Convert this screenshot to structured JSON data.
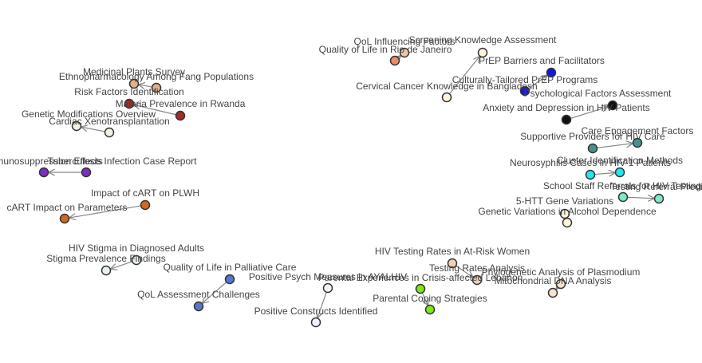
{
  "diagram": {
    "title": "",
    "nodes": [
      {
        "id": "n1",
        "label": "QoL Influencing Factors",
        "color": "#f0c4a2"
      },
      {
        "id": "n2",
        "label": "Quality of Life in Rio de Janeiro",
        "color": "#f08a5d"
      },
      {
        "id": "n3",
        "label": "Screening Knowledge Assessment",
        "color": "#fdf5dc"
      },
      {
        "id": "n4",
        "label": "Cervical Cancer Knowledge in Bangladesh",
        "color": "#fdf5dc"
      },
      {
        "id": "n5",
        "label": "PrEP Barriers and Facilitators",
        "color": "#1515e0"
      },
      {
        "id": "n6",
        "label": "Culturally-Tailored PrEP Programs",
        "color": "#1515e0"
      },
      {
        "id": "n7",
        "label": "Psychological Factors Assessment",
        "color": "#111111"
      },
      {
        "id": "n8",
        "label": "Anxiety and Depression in HIV Patients",
        "color": "#111111"
      },
      {
        "id": "n9",
        "label": "Medicinal Plants Survey",
        "color": "#e0b089"
      },
      {
        "id": "n10",
        "label": "Ethnopharmacology Among Fang Populations",
        "color": "#e0b089"
      },
      {
        "id": "n11",
        "label": "Risk Factors Identification",
        "color": "#a52a2a"
      },
      {
        "id": "n12",
        "label": "Malaria Prevalence in Rwanda",
        "color": "#a52a2a"
      },
      {
        "id": "n13",
        "label": "Genetic Modifications Overview",
        "color": "#f2f2e2"
      },
      {
        "id": "n14",
        "label": "Cardiac Xenotransplantation",
        "color": "#f2f2e2"
      },
      {
        "id": "n15",
        "label": "Care Engagement Factors",
        "color": "#4a8f8f"
      },
      {
        "id": "n16",
        "label": "Supportive Providers for HIV Care",
        "color": "#4a8f8f"
      },
      {
        "id": "n17",
        "label": "Cluster Identification Methods",
        "color": "#22e6f2"
      },
      {
        "id": "n18",
        "label": "Neurosyphilis Cases in HIV-1 Patients",
        "color": "#22e6f2"
      },
      {
        "id": "n19",
        "label": "Testing Referral Predictors",
        "color": "#7fe8cc"
      },
      {
        "id": "n20",
        "label": "School Staff Referrals for HIV Testing",
        "color": "#7fe8cc"
      },
      {
        "id": "n21",
        "label": "5-HTT Gene Variations",
        "color": "#fdf5dc"
      },
      {
        "id": "n22",
        "label": "Genetic Variations in Alcohol Dependence",
        "color": "#fdf5dc"
      },
      {
        "id": "n23",
        "label": "Immunosuppression Effects",
        "color": "#7a2ec2"
      },
      {
        "id": "n24",
        "label": "Tuberculosis Infection Case Report",
        "color": "#7a2ec2"
      },
      {
        "id": "n25",
        "label": "Impact of cART on PLWH",
        "color": "#d2691e"
      },
      {
        "id": "n26",
        "label": "cART Impact on Parameters",
        "color": "#d2691e"
      },
      {
        "id": "n27",
        "label": "HIV Stigma in Diagnosed Adults",
        "color": "#e6f2f2"
      },
      {
        "id": "n28",
        "label": "Stigma Prevalence Findings",
        "color": "#e6f2f2"
      },
      {
        "id": "n29",
        "label": "Quality of Life in Palliative Care",
        "color": "#5577cc"
      },
      {
        "id": "n30",
        "label": "QoL Assessment Challenges",
        "color": "#5577cc"
      },
      {
        "id": "n31",
        "label": "Positive Psych Measures in AYALHIV",
        "color": "#f2f2fa"
      },
      {
        "id": "n32",
        "label": "Positive Constructs Identified",
        "color": "#f2f2fa"
      },
      {
        "id": "n33",
        "label": "Parental Experiences in Crisis-affected Lebanon",
        "color": "#7fe61a"
      },
      {
        "id": "n34",
        "label": "Parental Coping Strategies",
        "color": "#7fe61a"
      },
      {
        "id": "n35",
        "label": "HIV Testing Rates in At-Risk Women",
        "color": "#f2d0b4"
      },
      {
        "id": "n36",
        "label": "Testing Rates Analysis",
        "color": "#f2d0b4"
      },
      {
        "id": "n37",
        "label": "Phylogenetic Analysis of Plasmodium",
        "color": "#f5e2cf"
      },
      {
        "id": "n38",
        "label": "Mitochondrial DNA Analysis",
        "color": "#f5e2cf"
      }
    ],
    "edges": [
      {
        "from": "n2",
        "to": "n1"
      },
      {
        "from": "n4",
        "to": "n3"
      },
      {
        "from": "n8",
        "to": "n7"
      },
      {
        "from": "n6",
        "to": "n5"
      },
      {
        "from": "n10",
        "to": "n9"
      },
      {
        "from": "n12",
        "to": "n11"
      },
      {
        "from": "n14",
        "to": "n13"
      },
      {
        "from": "n16",
        "to": "n15"
      },
      {
        "from": "n18",
        "to": "n17"
      },
      {
        "from": "n20",
        "to": "n19"
      },
      {
        "from": "n22",
        "to": "n21"
      },
      {
        "from": "n24",
        "to": "n23"
      },
      {
        "from": "n25",
        "to": "n26"
      },
      {
        "from": "n27",
        "to": "n28"
      },
      {
        "from": "n29",
        "to": "n30"
      },
      {
        "from": "n31",
        "to": "n32"
      },
      {
        "from": "n33",
        "to": "n34"
      },
      {
        "from": "n35",
        "to": "n36"
      },
      {
        "from": "n37",
        "to": "n38"
      }
    ]
  }
}
